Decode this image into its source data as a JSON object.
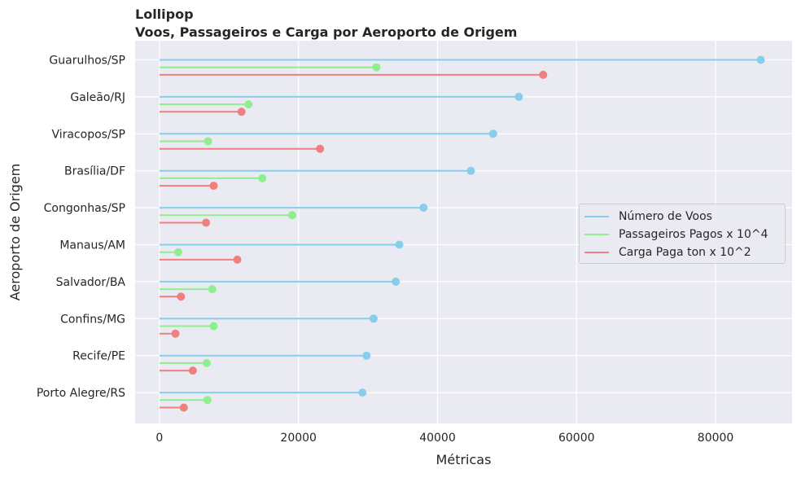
{
  "chart_data": {
    "type": "lollipop",
    "title": "Lollipop",
    "subtitle": "Voos, Passageiros e Carga por Aeroporto de Origem",
    "xlabel": "Métricas",
    "ylabel": "Aeroporto de Origem",
    "xlim": [
      -3500,
      91000
    ],
    "xticks": [
      0,
      20000,
      40000,
      60000,
      80000
    ],
    "xtick_labels": [
      "0",
      "20000",
      "40000",
      "60000",
      "80000"
    ],
    "grid": true,
    "legend_position": "center-right",
    "categories": [
      "Guarulhos/SP",
      "Galeão/RJ",
      "Viracopos/SP",
      "Brasília/DF",
      "Congonhas/SP",
      "Manaus/AM",
      "Salvador/BA",
      "Confins/MG",
      "Recife/PE",
      "Porto Alegre/RS"
    ],
    "series": [
      {
        "name": "Número de Voos",
        "color": "#87ceeb",
        "values": [
          86500,
          51700,
          48000,
          44800,
          38000,
          34500,
          34000,
          30800,
          29800,
          29200
        ]
      },
      {
        "name": "Passageiros Pagos x 10^4",
        "color": "#90ee90",
        "values": [
          31200,
          12800,
          7000,
          14800,
          19100,
          2700,
          7600,
          7800,
          6800,
          6900
        ]
      },
      {
        "name": "Carga Paga ton x 10^2",
        "color": "#f08080",
        "values": [
          55200,
          11800,
          23100,
          7800,
          6700,
          11200,
          3100,
          2300,
          4800,
          3500
        ]
      }
    ]
  }
}
